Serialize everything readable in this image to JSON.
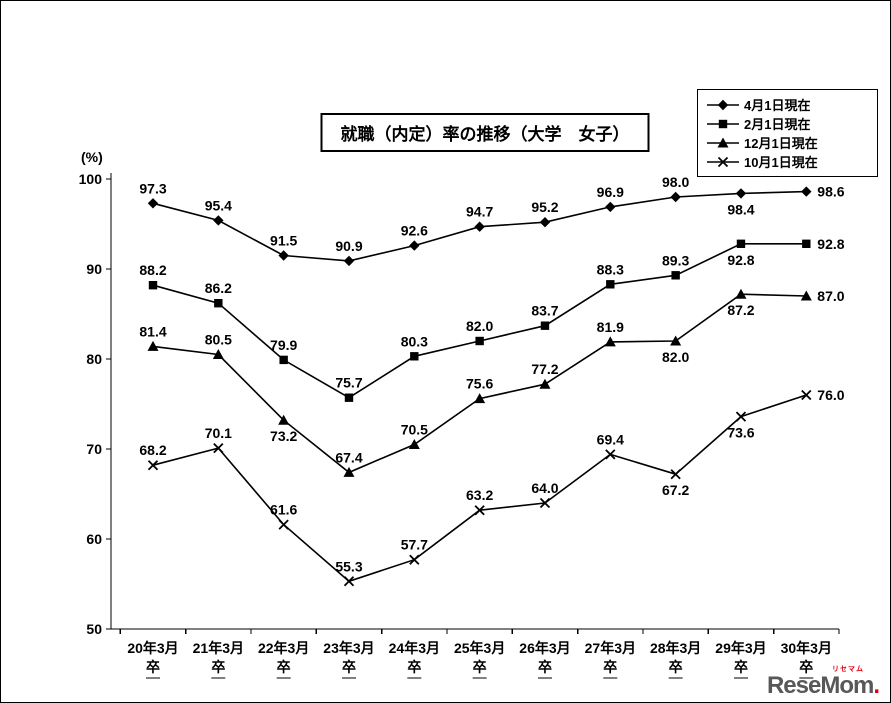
{
  "page": {
    "y_axis_unit": "(%)",
    "logo_main": "ReseMom",
    "logo_dot": ".",
    "logo_kana": "リセマム"
  },
  "chart_data": {
    "type": "line",
    "title": "就職（内定）率の推移（大学　女子）",
    "xlabel": "",
    "ylabel": "(%)",
    "ylim": [
      50,
      100
    ],
    "yticks": [
      100,
      90,
      80,
      70,
      60,
      50
    ],
    "grid": false,
    "legend_position": "top-right",
    "categories": [
      "20年3月",
      "21年3月",
      "22年3月",
      "23年3月",
      "24年3月",
      "25年3月",
      "26年3月",
      "27年3月",
      "28年3月",
      "29年3月",
      "30年3月"
    ],
    "category_suffix": "卒",
    "series": [
      {
        "name": "4月1日現在",
        "marker": "diamond",
        "values": [
          97.3,
          95.4,
          91.5,
          90.9,
          92.6,
          94.7,
          95.2,
          96.9,
          98.0,
          98.4,
          98.6
        ],
        "label_pos": [
          "a",
          "a",
          "a",
          "a",
          "a",
          "a",
          "a",
          "a",
          "a",
          "b",
          "r"
        ]
      },
      {
        "name": "2月1日現在",
        "marker": "square",
        "values": [
          88.2,
          86.2,
          79.9,
          75.7,
          80.3,
          82.0,
          83.7,
          88.3,
          89.3,
          92.8,
          92.8
        ],
        "label_pos": [
          "a",
          "a",
          "a",
          "a",
          "a",
          "a",
          "a",
          "a",
          "a",
          "b",
          "r"
        ]
      },
      {
        "name": "12月1日現在",
        "marker": "triangle",
        "values": [
          81.4,
          80.5,
          73.2,
          67.4,
          70.5,
          75.6,
          77.2,
          81.9,
          82.0,
          87.2,
          87.0
        ],
        "label_pos": [
          "a",
          "a",
          "b",
          "a",
          "a",
          "a",
          "a",
          "a",
          "b",
          "b",
          "r"
        ]
      },
      {
        "name": "10月1日現在",
        "marker": "x",
        "values": [
          68.2,
          70.1,
          61.6,
          55.3,
          57.7,
          63.2,
          64.0,
          69.4,
          67.2,
          73.6,
          76.0
        ],
        "label_pos": [
          "a",
          "a",
          "a",
          "a",
          "a",
          "a",
          "a",
          "a",
          "b",
          "b",
          "r"
        ]
      }
    ]
  }
}
